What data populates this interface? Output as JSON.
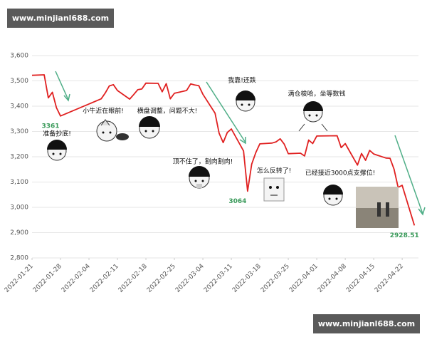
{
  "chart_data": {
    "type": "line",
    "watermarks": [
      "www.minjianl688.com",
      "www.minjianl688.com"
    ],
    "x": [
      "2022-01-21",
      "2022-01-24",
      "2022-01-25",
      "2022-01-26",
      "2022-01-27",
      "2022-01-28",
      "2022-02-07",
      "2022-02-08",
      "2022-02-09",
      "2022-02-10",
      "2022-02-11",
      "2022-02-14",
      "2022-02-15",
      "2022-02-16",
      "2022-02-17",
      "2022-02-18",
      "2022-02-21",
      "2022-02-22",
      "2022-02-23",
      "2022-02-24",
      "2022-02-25",
      "2022-02-28",
      "2022-03-01",
      "2022-03-02",
      "2022-03-03",
      "2022-03-04",
      "2022-03-07",
      "2022-03-08",
      "2022-03-09",
      "2022-03-10",
      "2022-03-11",
      "2022-03-14",
      "2022-03-15",
      "2022-03-16",
      "2022-03-17",
      "2022-03-18",
      "2022-03-21",
      "2022-03-22",
      "2022-03-23",
      "2022-03-24",
      "2022-03-25",
      "2022-03-28",
      "2022-03-29",
      "2022-03-30",
      "2022-03-31",
      "2022-04-01",
      "2022-04-06",
      "2022-04-07",
      "2022-04-08",
      "2022-04-11",
      "2022-04-12",
      "2022-04-13",
      "2022-04-14",
      "2022-04-15",
      "2022-04-18",
      "2022-04-19",
      "2022-04-20",
      "2022-04-21",
      "2022-04-22",
      "2022-04-25"
    ],
    "series": [
      {
        "color": "#e02020",
        "values": [
          3522,
          3524,
          3433,
          3455,
          3394,
          3361,
          3429,
          3452,
          3480,
          3485,
          3462,
          3428,
          3446,
          3465,
          3468,
          3491,
          3490,
          3457,
          3489,
          3429,
          3451,
          3462,
          3488,
          3484,
          3481,
          3447,
          3372,
          3293,
          3256,
          3296,
          3310,
          3223,
          3064,
          3171,
          3216,
          3251,
          3254,
          3259,
          3271,
          3250,
          3212,
          3214,
          3203,
          3266,
          3252,
          3282,
          3283,
          3236,
          3252,
          3167,
          3213,
          3186,
          3225,
          3211,
          3195,
          3194,
          3151,
          3079,
          3087,
          2928.51
        ],
        "value_labels": [
          "",
          "",
          "",
          "",
          "",
          "3361",
          null,
          null,
          null,
          null,
          null,
          null,
          null,
          null,
          null,
          null,
          null,
          null,
          null,
          null,
          null,
          null,
          null,
          null,
          null,
          null,
          null,
          null,
          null,
          null,
          null,
          null,
          "3064",
          null,
          null,
          null,
          null,
          null,
          null,
          null,
          null,
          null,
          null,
          null,
          null,
          null,
          null,
          null,
          null,
          null,
          null,
          null,
          null,
          null,
          null,
          null,
          null,
          null,
          null,
          "2928.51"
        ]
      }
    ],
    "annotations": [
      "准备抄底!",
      "小牛近在眼前!",
      "横盘调整，问题不大!",
      "顶不住了，割肉割肉!",
      "我靠!还跌",
      "怎么反转了!",
      "满仓梭哈，坐等数钱",
      "已经接近3000点支撑位!"
    ],
    "xlim": [
      "2022-01-21",
      "2022-04-26"
    ],
    "xticks": [
      "2022-01-21",
      "2022-01-28",
      "2022-02-04",
      "2022-02-11",
      "2022-02-18",
      "2022-02-25",
      "2022-03-04",
      "2022-03-11",
      "2022-03-18",
      "2022-03-25",
      "2022-04-01",
      "2022-04-08",
      "2022-04-15",
      "2022-04-22"
    ],
    "ylim": [
      2800,
      3600
    ],
    "yticks": [
      {
        "value": 2800,
        "label": "2,800"
      },
      {
        "value": 2900,
        "label": "2,900"
      },
      {
        "value": 3000,
        "label": "3,000"
      },
      {
        "value": 3100,
        "label": "3,100"
      },
      {
        "value": 3200,
        "label": "3,200"
      },
      {
        "value": 3300,
        "label": "3,300"
      },
      {
        "value": 3400,
        "label": "3,400"
      },
      {
        "value": 3500,
        "label": "3,500"
      },
      {
        "value": 3600,
        "label": "3,600"
      }
    ],
    "grid": true
  }
}
